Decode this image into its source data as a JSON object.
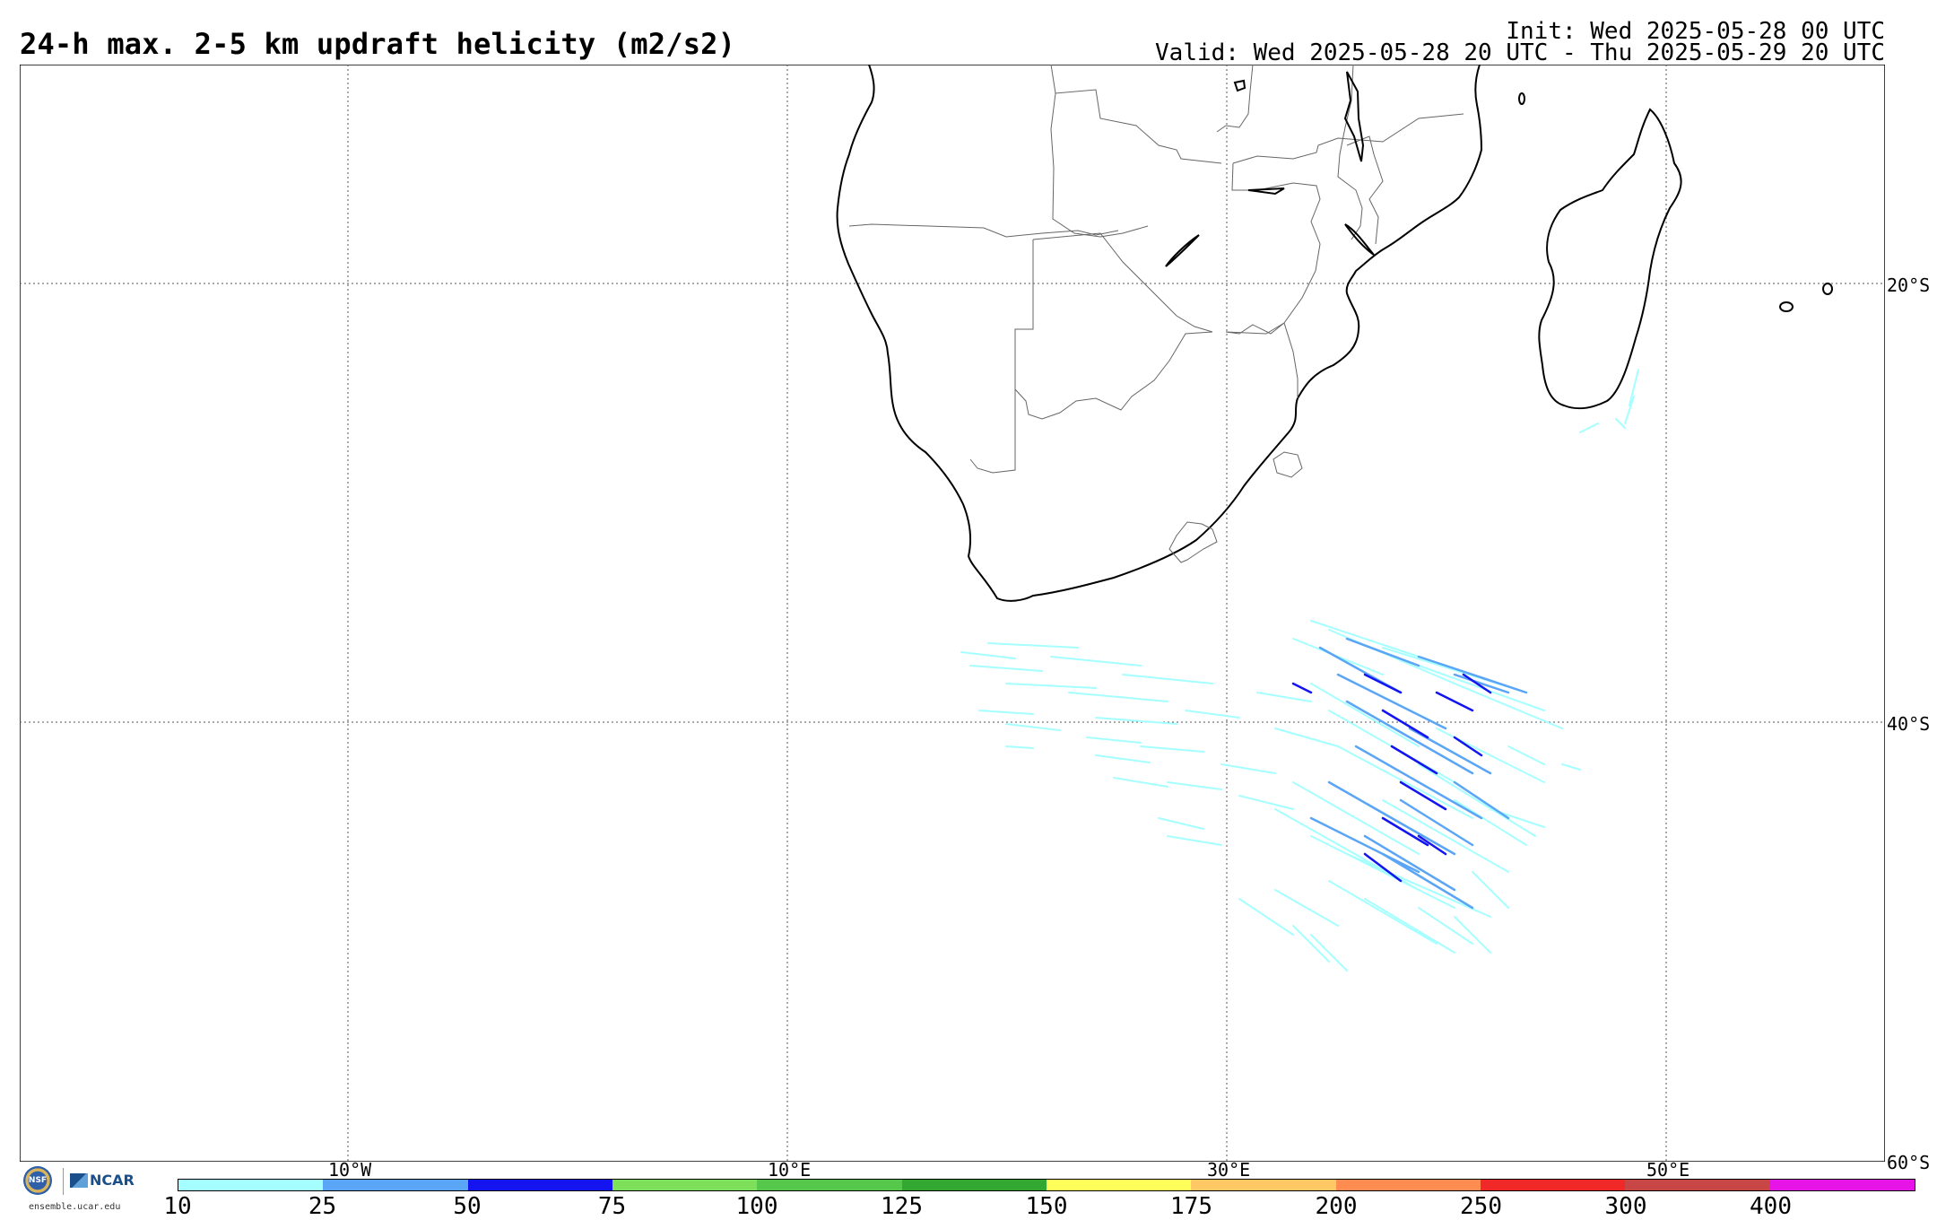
{
  "header": {
    "title": "24-h max. 2-5 km updraft helicity (m2/s2)",
    "init": "Init: Wed 2025-05-28 00 UTC",
    "valid": "Valid: Wed 2025-05-28 20 UTC - Thu 2025-05-29 20 UTC"
  },
  "map": {
    "lat_labels": [
      "20°S",
      "40°S",
      "60°S"
    ],
    "lon_labels": [
      "10°W",
      "10°E",
      "30°E",
      "50°E"
    ]
  },
  "colorbar": {
    "labels": [
      "10",
      "25",
      "50",
      "75",
      "100",
      "125",
      "150",
      "175",
      "200",
      "250",
      "300",
      "400"
    ],
    "colors": [
      "#a6ffff",
      "#5aa5f5",
      "#1414f0",
      "#7ee05a",
      "#55c84b",
      "#32a832",
      "#ffff5a",
      "#ffc864",
      "#ff8c50",
      "#f02828",
      "#c84646",
      "#e614e6"
    ]
  },
  "logos": {
    "nsf": "NSF",
    "ncar": "NCAR",
    "site": "ensemble.ucar.edu"
  }
}
